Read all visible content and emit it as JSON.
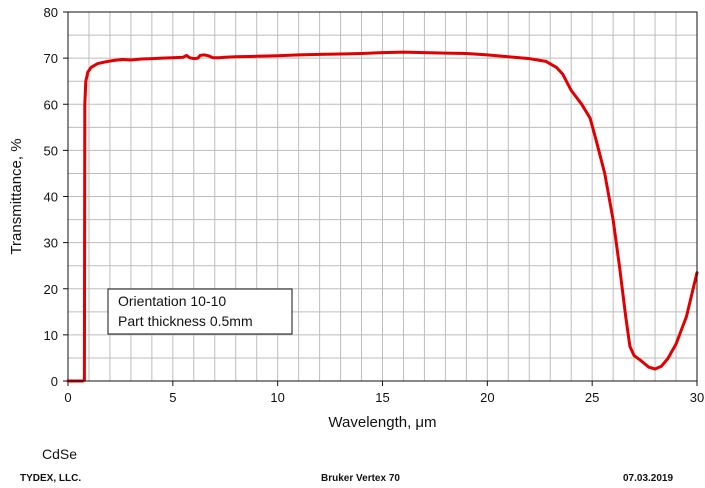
{
  "chart_data": {
    "type": "line",
    "xlabel": "Wavelength, μm",
    "ylabel": "Transmittance, %",
    "xlim": [
      0,
      30
    ],
    "ylim": [
      0,
      80
    ],
    "x_ticks": [
      0,
      5,
      10,
      15,
      20,
      25,
      30
    ],
    "y_ticks": [
      0,
      10,
      20,
      30,
      40,
      50,
      60,
      70,
      80
    ],
    "grid": true,
    "series": [
      {
        "color": "#e00000",
        "points": [
          [
            0.0,
            0.0
          ],
          [
            0.7,
            0.0
          ],
          [
            0.78,
            0.2
          ],
          [
            0.8,
            60.0
          ],
          [
            0.85,
            65.0
          ],
          [
            0.95,
            67.0
          ],
          [
            1.1,
            68.0
          ],
          [
            1.4,
            68.8
          ],
          [
            1.8,
            69.2
          ],
          [
            2.2,
            69.5
          ],
          [
            2.6,
            69.7
          ],
          [
            3.0,
            69.6
          ],
          [
            3.5,
            69.8
          ],
          [
            4.0,
            69.9
          ],
          [
            4.5,
            70.0
          ],
          [
            5.0,
            70.1
          ],
          [
            5.5,
            70.2
          ],
          [
            5.65,
            70.6
          ],
          [
            5.8,
            70.1
          ],
          [
            6.0,
            69.9
          ],
          [
            6.2,
            70.0
          ],
          [
            6.3,
            70.6
          ],
          [
            6.5,
            70.7
          ],
          [
            6.7,
            70.5
          ],
          [
            6.9,
            70.1
          ],
          [
            7.2,
            70.1
          ],
          [
            7.5,
            70.2
          ],
          [
            8.0,
            70.3
          ],
          [
            9.0,
            70.4
          ],
          [
            10.0,
            70.5
          ],
          [
            11.0,
            70.7
          ],
          [
            12.0,
            70.8
          ],
          [
            13.0,
            70.9
          ],
          [
            14.0,
            71.0
          ],
          [
            15.0,
            71.2
          ],
          [
            16.0,
            71.3
          ],
          [
            17.0,
            71.2
          ],
          [
            18.0,
            71.1
          ],
          [
            19.0,
            71.0
          ],
          [
            20.0,
            70.7
          ],
          [
            21.0,
            70.3
          ],
          [
            22.0,
            69.9
          ],
          [
            22.8,
            69.3
          ],
          [
            23.3,
            68.0
          ],
          [
            23.6,
            66.5
          ],
          [
            24.0,
            63.0
          ],
          [
            24.5,
            60.0
          ],
          [
            24.9,
            57.0
          ],
          [
            25.2,
            52.0
          ],
          [
            25.6,
            45.0
          ],
          [
            26.0,
            35.0
          ],
          [
            26.3,
            25.0
          ],
          [
            26.6,
            14.0
          ],
          [
            26.8,
            7.5
          ],
          [
            27.0,
            5.5
          ],
          [
            27.3,
            4.5
          ],
          [
            27.7,
            3.0
          ],
          [
            28.0,
            2.6
          ],
          [
            28.3,
            3.2
          ],
          [
            28.6,
            4.8
          ],
          [
            29.0,
            8.0
          ],
          [
            29.5,
            14.0
          ],
          [
            30.0,
            23.5
          ]
        ]
      }
    ],
    "annotation": {
      "lines": [
        "Orientation 10-10",
        "Part thickness 0.5mm"
      ]
    }
  },
  "footer": {
    "sample": "CdSe",
    "company": "TYDEX, LLC.",
    "instrument": "Bruker Vertex 70",
    "date": "07.03.2019"
  }
}
